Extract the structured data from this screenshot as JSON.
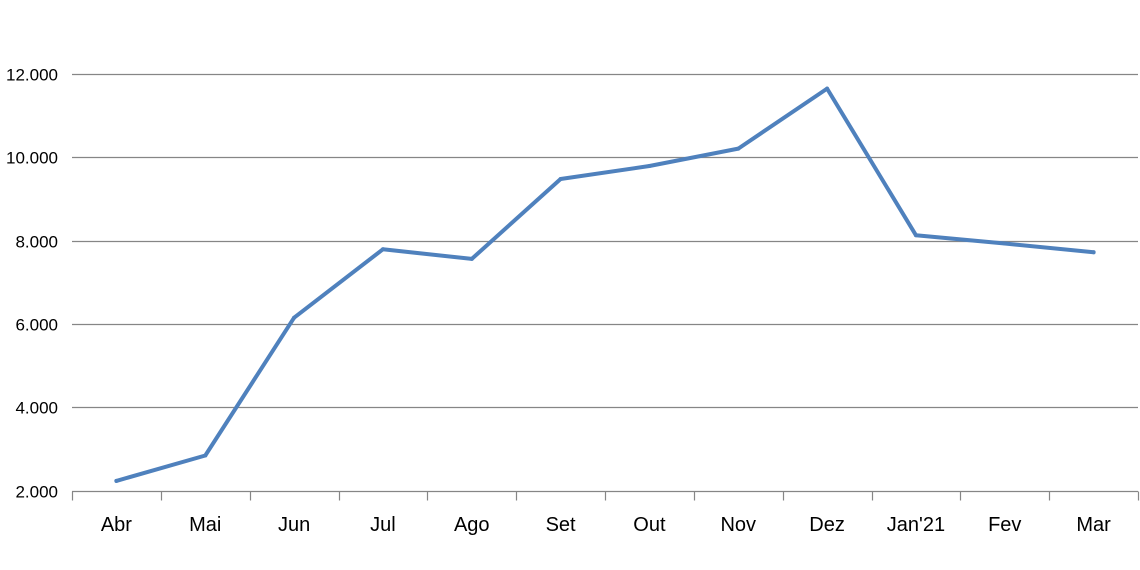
{
  "chart_data": {
    "type": "line",
    "title": "",
    "xlabel": "",
    "ylabel": "",
    "categories": [
      "Abr",
      "Mai",
      "Jun",
      "Jul",
      "Ago",
      "Set",
      "Out",
      "Nov",
      "Dez",
      "Jan'21",
      "Fev",
      "Mar"
    ],
    "series": [
      {
        "values": [
          2230,
          2840,
          6150,
          7790,
          7560,
          9480,
          9790,
          10210,
          11650,
          8130,
          7930,
          7720
        ]
      }
    ],
    "ylim": [
      2000,
      12000
    ],
    "yticks": [
      2000,
      4000,
      6000,
      8000,
      10000,
      12000
    ],
    "ytick_labels": [
      "2.000",
      "4.000",
      "6.000",
      "8.000",
      "10.000",
      "12.000"
    ],
    "grid": "horizontal",
    "legend": "none",
    "line_color": "#4f81bd",
    "grid_color": "#868686"
  }
}
